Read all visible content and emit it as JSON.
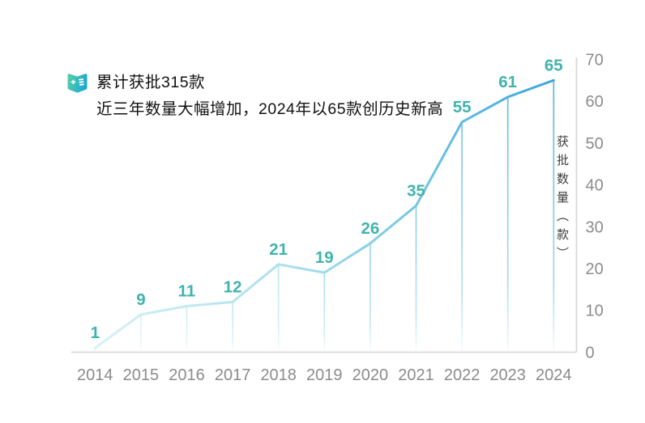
{
  "header": {
    "line1": "累计获批315款",
    "line2": "近三年数量大幅增加，2024年以65款创历史新高",
    "icon": "report-book-icon",
    "icon_gradient": [
      "#58d1a5",
      "#1ca9d3"
    ]
  },
  "chart_data": {
    "type": "line",
    "categories": [
      "2014",
      "2015",
      "2016",
      "2017",
      "2018",
      "2019",
      "2020",
      "2021",
      "2022",
      "2023",
      "2024"
    ],
    "values": [
      1,
      9,
      11,
      12,
      21,
      19,
      26,
      35,
      55,
      61,
      65
    ],
    "title": "",
    "xlabel": "",
    "ylabel": "获批数量（款）",
    "ylim": [
      0,
      70
    ],
    "yticks": [
      0,
      10,
      20,
      30,
      40,
      50,
      60,
      70
    ],
    "grid": false,
    "legend": false,
    "annotations": [
      "累计获批315款",
      "近三年数量大幅增加，2024年以65款创历史新高"
    ],
    "style": {
      "line_gradient": [
        "#d8f2f4",
        "#a6dfec",
        "#3aa7dc"
      ],
      "line_gradient_positions": [
        0,
        0.45,
        1
      ],
      "value_label_color": "#3fb3ad",
      "axis_color": "#d7d7d7",
      "tick_label_color": "#8c8c8c"
    }
  }
}
